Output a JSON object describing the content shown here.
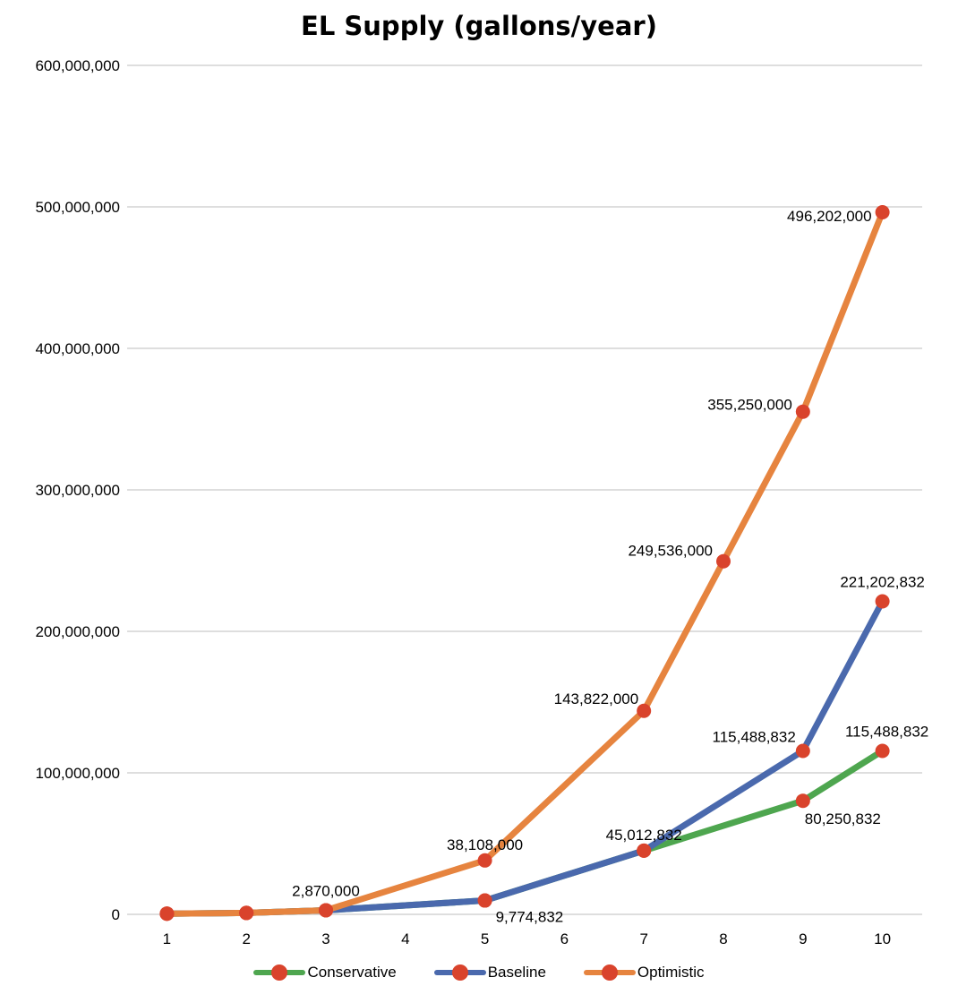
{
  "chart_data": {
    "type": "line",
    "title": "EL Supply (gallons/year)",
    "xlabel": "",
    "ylabel": "",
    "categories": [
      "1",
      "2",
      "3",
      "4",
      "5",
      "6",
      "7",
      "8",
      "9",
      "10"
    ],
    "ylim": [
      0,
      600000000
    ],
    "yticks": [
      0,
      100000000,
      200000000,
      300000000,
      400000000,
      500000000,
      600000000
    ],
    "ytick_labels": [
      "0",
      "100,000,000",
      "200,000,000",
      "300,000,000",
      "400,000,000",
      "500,000,000",
      "600,000,000"
    ],
    "grid": true,
    "legend_position": "bottom",
    "marker_color": "#d9432c",
    "series": [
      {
        "name": "Conservative",
        "color": "#4ea64f",
        "values": [
          500000,
          1000000,
          2870000,
          null,
          9774832,
          null,
          45012832,
          null,
          80250832,
          115488832
        ],
        "data_labels": [
          null,
          null,
          null,
          null,
          null,
          null,
          null,
          null,
          "80,250,832",
          "115,488,832"
        ]
      },
      {
        "name": "Baseline",
        "color": "#4a69ad",
        "values": [
          500000,
          1000000,
          2870000,
          null,
          9774832,
          null,
          45012832,
          null,
          115488832,
          221202832
        ],
        "data_labels": [
          null,
          null,
          null,
          null,
          "9,774,832",
          null,
          "45,012,832",
          null,
          "115,488,832",
          "221,202,832"
        ]
      },
      {
        "name": "Optimistic",
        "color": "#e6843f",
        "values": [
          500000,
          1000000,
          2870000,
          null,
          38108000,
          null,
          143822000,
          249536000,
          355250000,
          496202000
        ],
        "data_labels": [
          null,
          null,
          "2,870,000",
          null,
          "38,108,000",
          null,
          "143,822,000",
          "249,536,000",
          "355,250,000",
          "496,202,000"
        ]
      }
    ]
  }
}
